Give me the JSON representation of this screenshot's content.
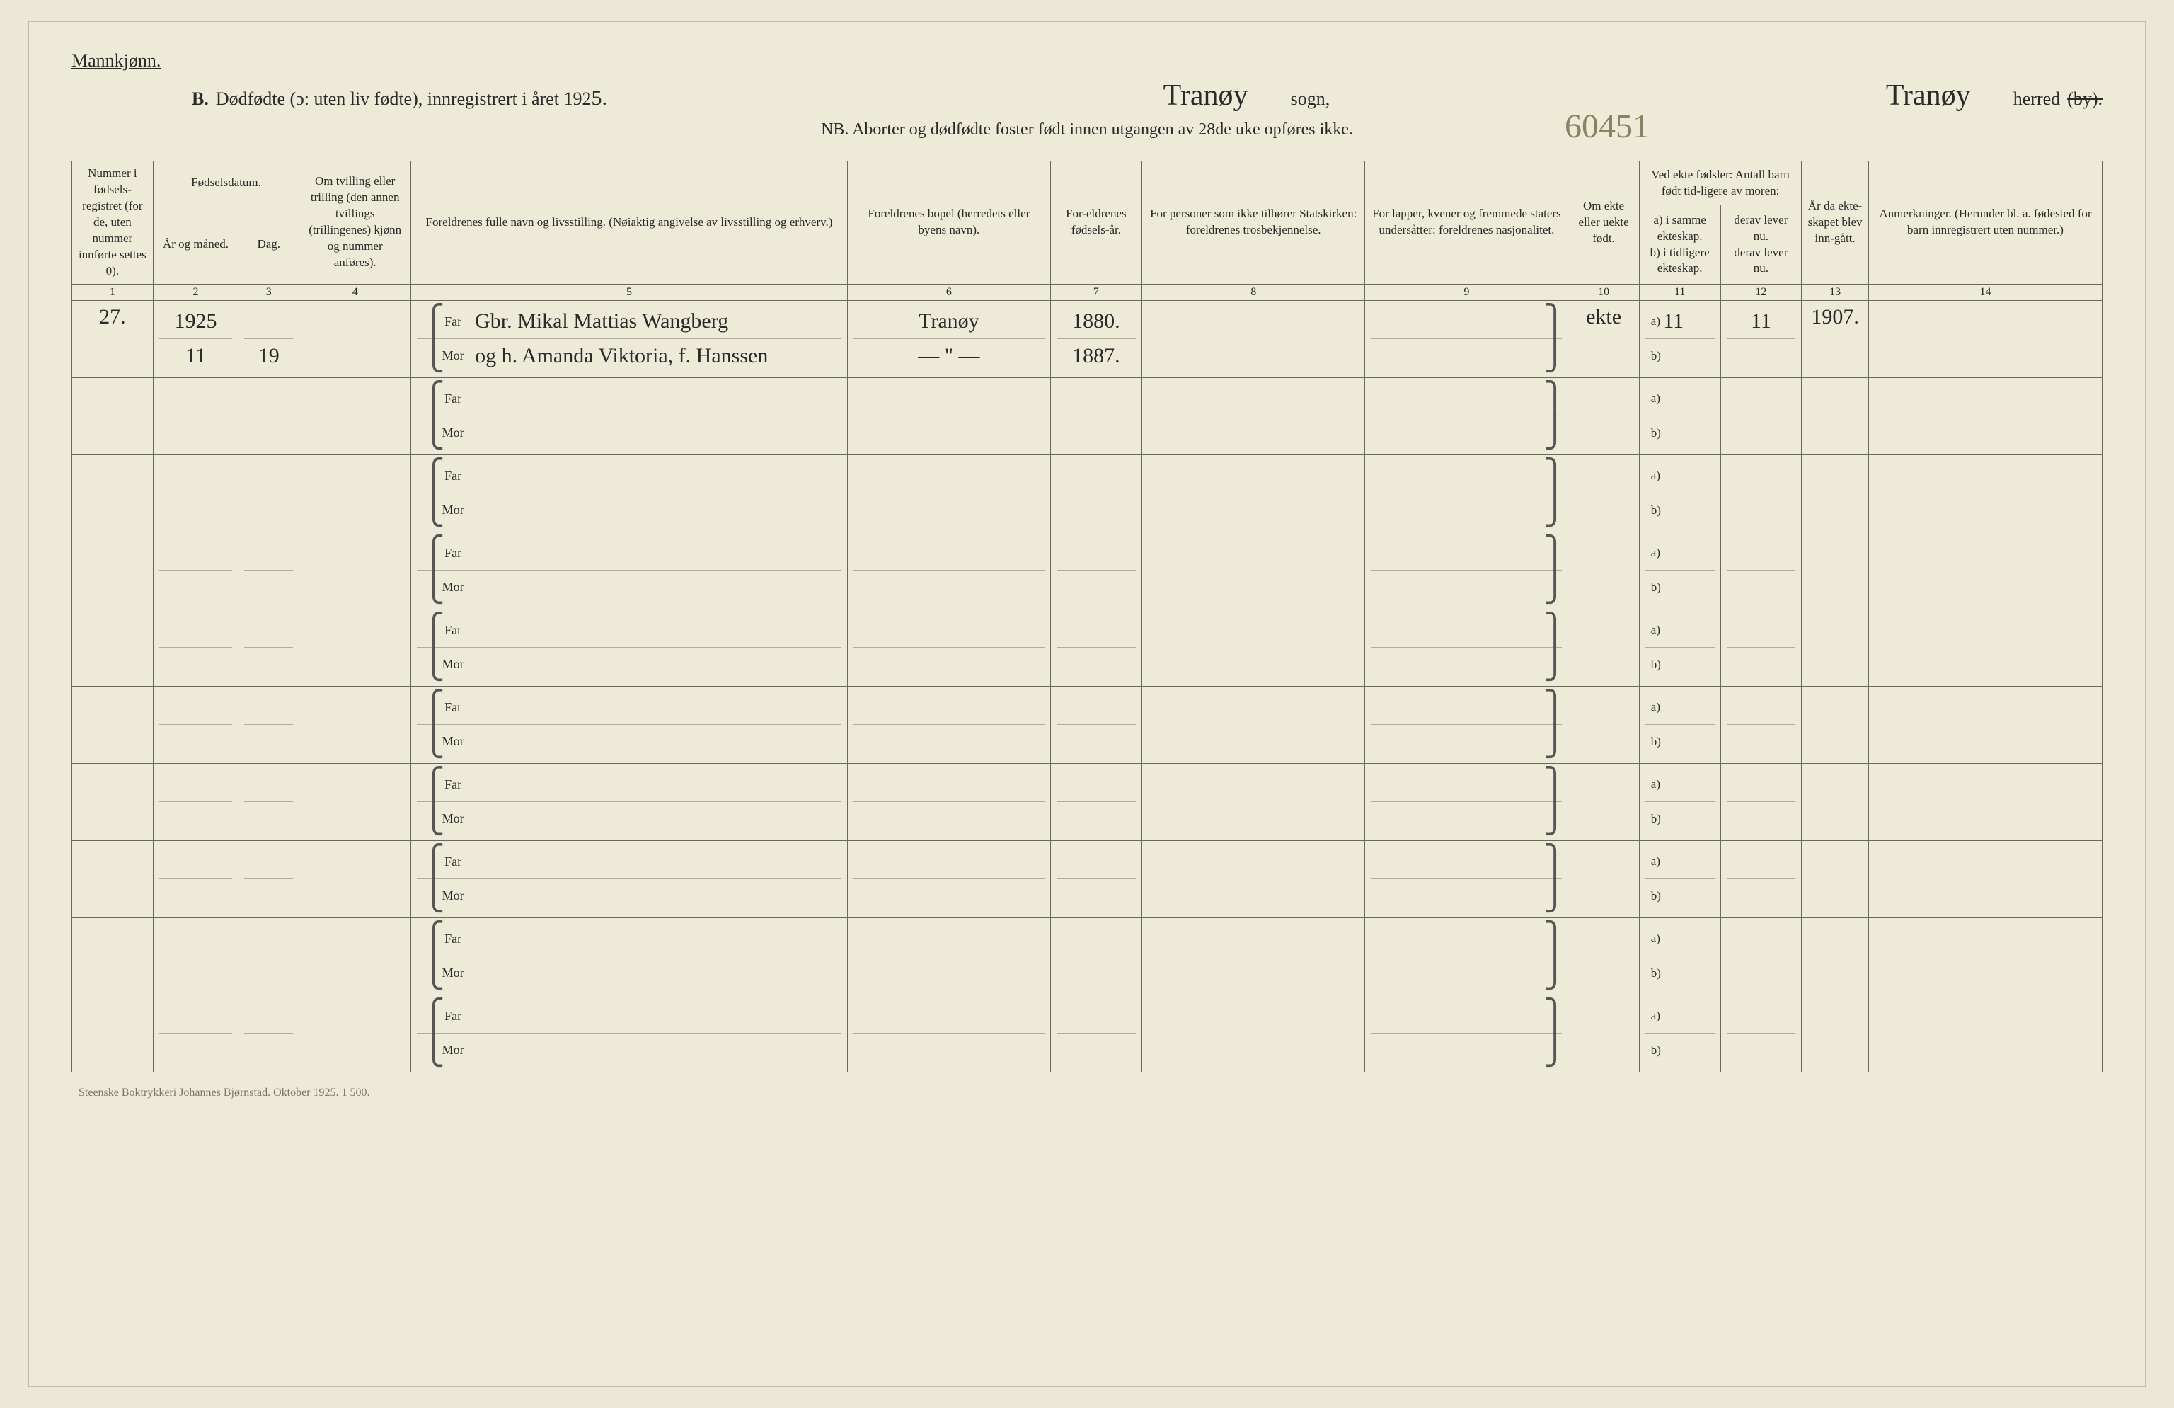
{
  "header": {
    "gender": "Mannkjønn.",
    "section_letter": "B.",
    "title_main": "Dødfødte (ɔ: uten liv fødte), innregistrert i året 192",
    "year_suffix": "5.",
    "sogn_label": "sogn,",
    "sogn_value": "Tranøy",
    "herred_label": "herred",
    "herred_value": "Tranøy",
    "herred_struck": "(by).",
    "subtitle": "NB. Aborter og dødfødte foster født innen utgangen av 28de uke opføres ikke.",
    "reference_number": "60451"
  },
  "columns": {
    "c1": "Nummer i fødsels-registret (for de, uten nummer innførte settes 0).",
    "c2_group": "Fødselsdatum.",
    "c2a": "År og måned.",
    "c2b": "Dag.",
    "c4": "Om tvilling eller trilling (den annen tvillings (trillingenes) kjønn og nummer anføres).",
    "c5": "Foreldrenes fulle navn og livsstilling. (Nøiaktig angivelse av livsstilling og erhverv.)",
    "c6": "Foreldrenes bopel (herredets eller byens navn).",
    "c7": "For-eldrenes fødsels-år.",
    "c8": "For personer som ikke tilhører Statskirken: foreldrenes trosbekjennelse.",
    "c9": "For lapper, kvener og fremmede staters undersåtter: foreldrenes nasjonalitet.",
    "c10": "Om ekte eller uekte født.",
    "c11_12_group": "Ved ekte fødsler: Antall barn født tid-ligere av moren:",
    "c11": "a) i samme ekteskap.\nb) i tidligere ekteskap.",
    "c12": "derav lever nu.\nderav lever nu.",
    "c13": "År da ekte-skapet blev inn-gått.",
    "c14": "Anmerkninger. (Herunder bl. a. fødested for barn innregistrert uten nummer.)"
  },
  "colnums": [
    "1",
    "2",
    "3",
    "4",
    "5",
    "6",
    "7",
    "8",
    "9",
    "10",
    "11",
    "12",
    "13",
    "14"
  ],
  "far_label": "Far",
  "mor_label": "Mor",
  "ab_a": "a)",
  "ab_b": "b)",
  "rows": [
    {
      "num": "27.",
      "year_month_top": "1925",
      "year_month_bot": "11",
      "day": "19",
      "twin": "",
      "far_name": "Gbr. Mikal Mattias Wangberg",
      "mor_name": "og h. Amanda Viktoria, f. Hanssen",
      "bopel_far": "Tranøy",
      "bopel_mor": "— \" —",
      "year_far": "1880.",
      "year_mor": "1887.",
      "c8": "",
      "c9": "",
      "ekte": "ekte",
      "c11_a": "11",
      "c11_b": "",
      "c12_a": "11",
      "c12_b": "",
      "c13": "1907.",
      "c14": ""
    },
    {
      "num": "",
      "year_month_top": "",
      "year_month_bot": "",
      "day": "",
      "twin": "",
      "far_name": "",
      "mor_name": "",
      "bopel_far": "",
      "bopel_mor": "",
      "year_far": "",
      "year_mor": "",
      "c8": "",
      "c9": "",
      "ekte": "",
      "c11_a": "",
      "c11_b": "",
      "c12_a": "",
      "c12_b": "",
      "c13": "",
      "c14": ""
    },
    {
      "num": "",
      "year_month_top": "",
      "year_month_bot": "",
      "day": "",
      "twin": "",
      "far_name": "",
      "mor_name": "",
      "bopel_far": "",
      "bopel_mor": "",
      "year_far": "",
      "year_mor": "",
      "c8": "",
      "c9": "",
      "ekte": "",
      "c11_a": "",
      "c11_b": "",
      "c12_a": "",
      "c12_b": "",
      "c13": "",
      "c14": ""
    },
    {
      "num": "",
      "year_month_top": "",
      "year_month_bot": "",
      "day": "",
      "twin": "",
      "far_name": "",
      "mor_name": "",
      "bopel_far": "",
      "bopel_mor": "",
      "year_far": "",
      "year_mor": "",
      "c8": "",
      "c9": "",
      "ekte": "",
      "c11_a": "",
      "c11_b": "",
      "c12_a": "",
      "c12_b": "",
      "c13": "",
      "c14": ""
    },
    {
      "num": "",
      "year_month_top": "",
      "year_month_bot": "",
      "day": "",
      "twin": "",
      "far_name": "",
      "mor_name": "",
      "bopel_far": "",
      "bopel_mor": "",
      "year_far": "",
      "year_mor": "",
      "c8": "",
      "c9": "",
      "ekte": "",
      "c11_a": "",
      "c11_b": "",
      "c12_a": "",
      "c12_b": "",
      "c13": "",
      "c14": ""
    },
    {
      "num": "",
      "year_month_top": "",
      "year_month_bot": "",
      "day": "",
      "twin": "",
      "far_name": "",
      "mor_name": "",
      "bopel_far": "",
      "bopel_mor": "",
      "year_far": "",
      "year_mor": "",
      "c8": "",
      "c9": "",
      "ekte": "",
      "c11_a": "",
      "c11_b": "",
      "c12_a": "",
      "c12_b": "",
      "c13": "",
      "c14": ""
    },
    {
      "num": "",
      "year_month_top": "",
      "year_month_bot": "",
      "day": "",
      "twin": "",
      "far_name": "",
      "mor_name": "",
      "bopel_far": "",
      "bopel_mor": "",
      "year_far": "",
      "year_mor": "",
      "c8": "",
      "c9": "",
      "ekte": "",
      "c11_a": "",
      "c11_b": "",
      "c12_a": "",
      "c12_b": "",
      "c13": "",
      "c14": ""
    },
    {
      "num": "",
      "year_month_top": "",
      "year_month_bot": "",
      "day": "",
      "twin": "",
      "far_name": "",
      "mor_name": "",
      "bopel_far": "",
      "bopel_mor": "",
      "year_far": "",
      "year_mor": "",
      "c8": "",
      "c9": "",
      "ekte": "",
      "c11_a": "",
      "c11_b": "",
      "c12_a": "",
      "c12_b": "",
      "c13": "",
      "c14": ""
    },
    {
      "num": "",
      "year_month_top": "",
      "year_month_bot": "",
      "day": "",
      "twin": "",
      "far_name": "",
      "mor_name": "",
      "bopel_far": "",
      "bopel_mor": "",
      "year_far": "",
      "year_mor": "",
      "c8": "",
      "c9": "",
      "ekte": "",
      "c11_a": "",
      "c11_b": "",
      "c12_a": "",
      "c12_b": "",
      "c13": "",
      "c14": ""
    },
    {
      "num": "",
      "year_month_top": "",
      "year_month_bot": "",
      "day": "",
      "twin": "",
      "far_name": "",
      "mor_name": "",
      "bopel_far": "",
      "bopel_mor": "",
      "year_far": "",
      "year_mor": "",
      "c8": "",
      "c9": "",
      "ekte": "",
      "c11_a": "",
      "c11_b": "",
      "c12_a": "",
      "c12_b": "",
      "c13": "",
      "c14": ""
    }
  ],
  "footer": "Steenske Boktrykkeri Johannes Bjørnstad.   Oktober 1925.   1 500.",
  "colors": {
    "page_bg": "#edead7",
    "body_bg": "#ebe8d6",
    "border": "#6a6a5a",
    "sub_border": "#b0ad98",
    "text": "#2a2a2a",
    "faded": "#7a7865",
    "ref_ink": "#8a8260"
  },
  "layout": {
    "col_widths_pct": [
      4.0,
      4.2,
      3.0,
      5.5,
      21.5,
      10.0,
      4.5,
      11.0,
      10.0,
      3.5,
      4.0,
      4.0,
      3.3,
      11.5
    ],
    "header_fontsize_pt": 17,
    "body_fontsize_pt": 18,
    "title_fontsize_pt": 26,
    "cursive_fontsize_pt": 42
  }
}
